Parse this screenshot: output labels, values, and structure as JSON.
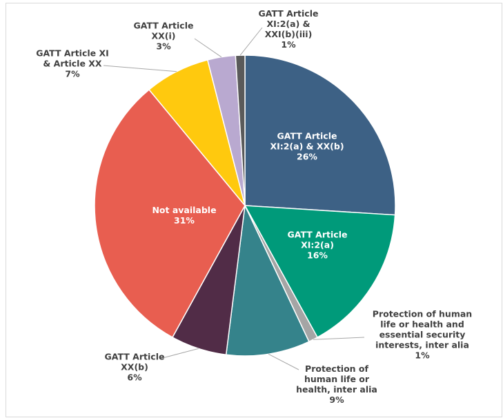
{
  "chart_data": {
    "type": "pie",
    "categories": [
      "GATT Article XI:2(a) & XX(b)",
      "GATT Article XI:2(a)",
      "Protection of human life or health and essential security interests, inter alia",
      "Protection of human life or health, inter alia",
      "GATT Article XX(b)",
      "Not available",
      "GATT Article XI & Article XX",
      "GATT Article XX(i)",
      "GATT Article XI:2(a) & XXI(b)(iii)"
    ],
    "values": [
      26,
      16,
      1,
      9,
      6,
      31,
      7,
      3,
      1
    ],
    "value_labels": [
      "26%",
      "16%",
      "1%",
      "9%",
      "6%",
      "31%",
      "7%",
      "3%",
      "1%"
    ],
    "colors": [
      "#3d6185",
      "#009a7a",
      "#a5a5a5",
      "#35838b",
      "#512c47",
      "#e85e50",
      "#ffc90e",
      "#b9a9d0",
      "#5a5a5a"
    ]
  }
}
